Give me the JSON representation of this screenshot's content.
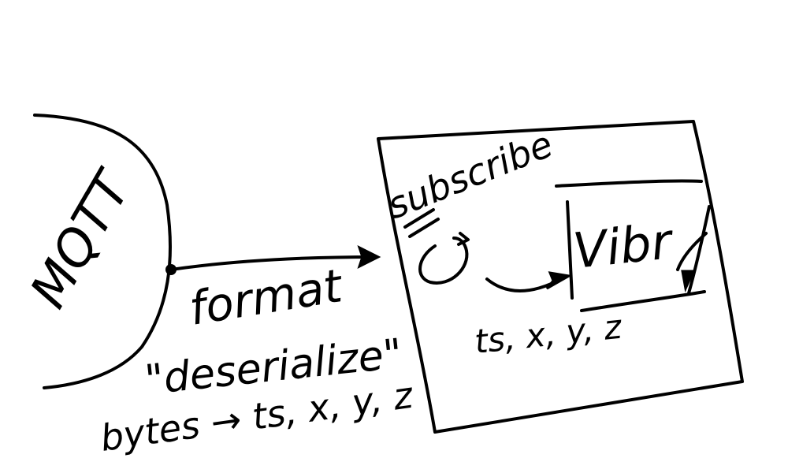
{
  "labels": {
    "mqtt": "MQTT",
    "format": "format",
    "deserialize": "\"deserialize\"",
    "bytes_conversion": "bytes → ts, x, y, z",
    "subscribe": "subscribe",
    "vibr": "Vibr",
    "fields": "ts, x, y, z"
  },
  "colors": {
    "ink": "#000000",
    "background": "#ffffff"
  }
}
